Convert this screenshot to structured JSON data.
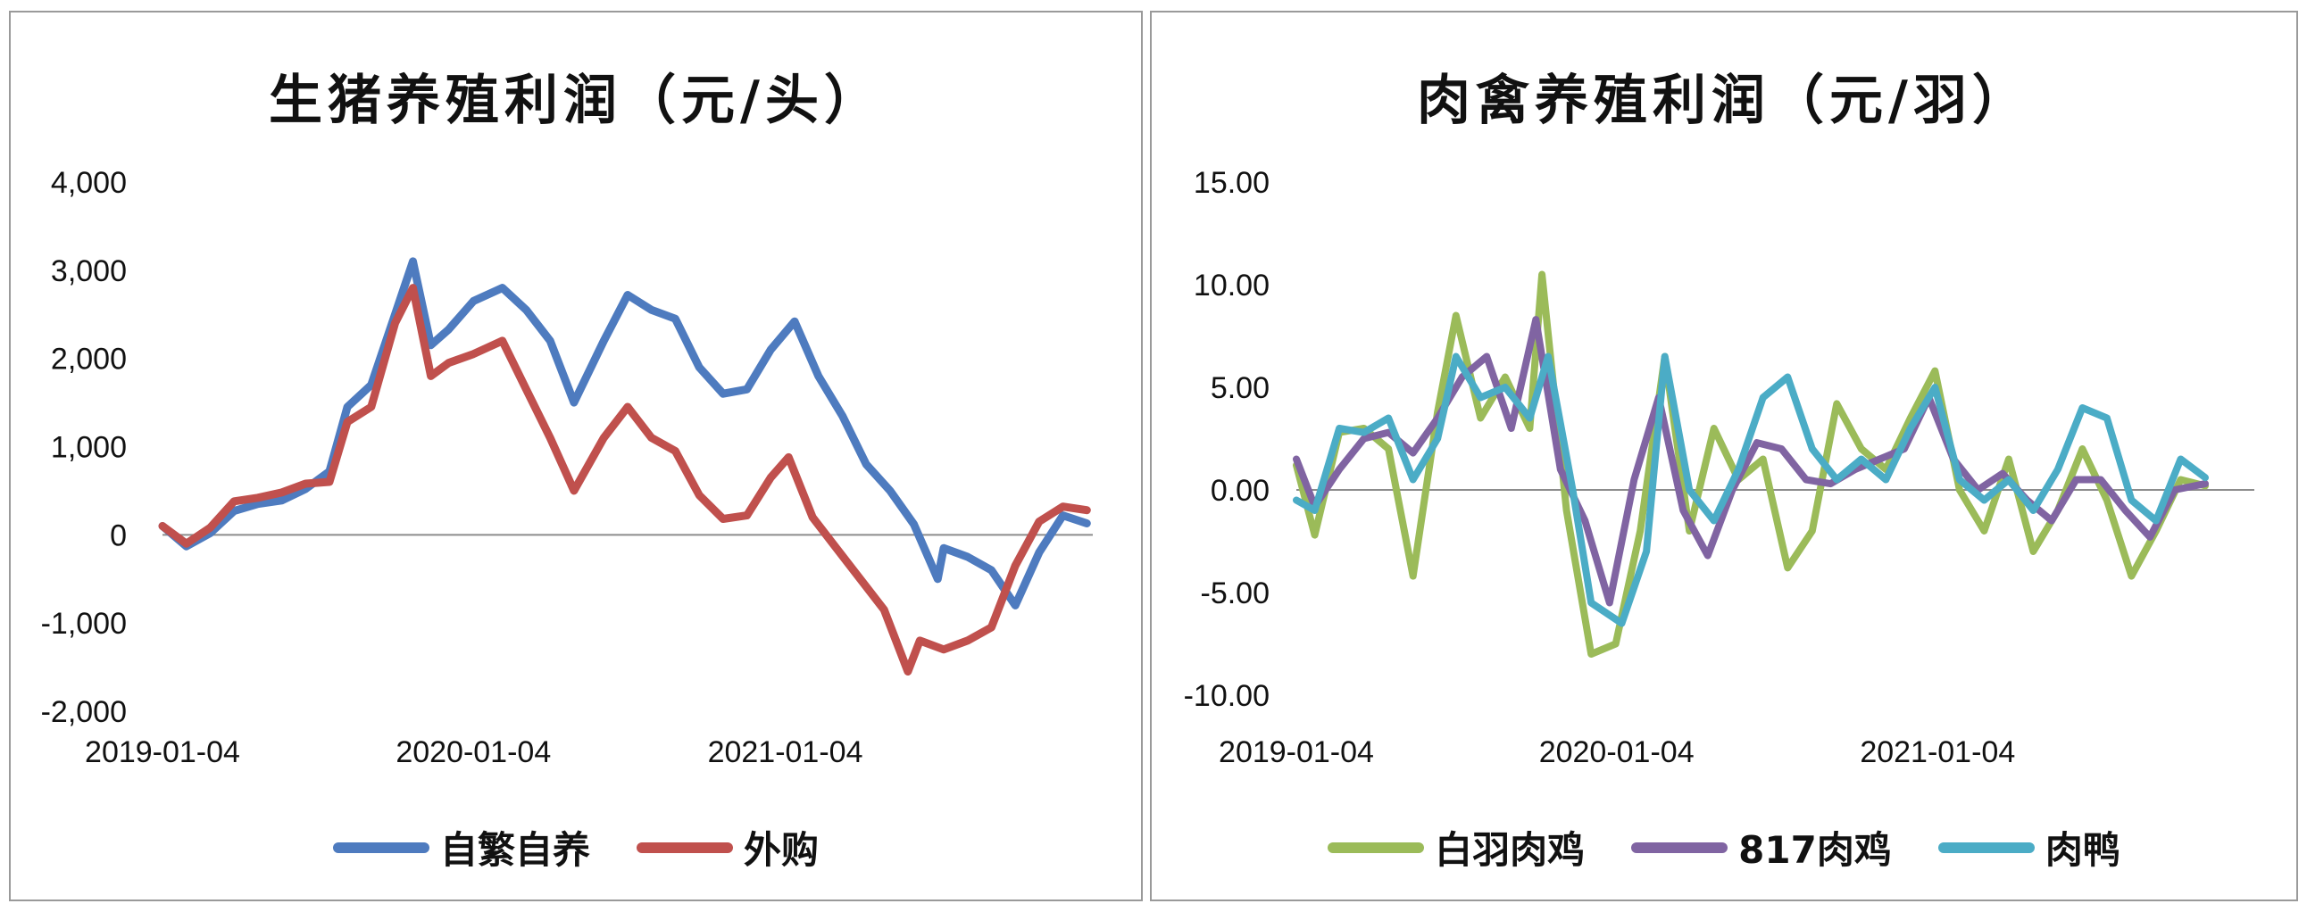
{
  "chart_data": [
    {
      "type": "line",
      "title": "生猪养殖利润（元/头）",
      "xlabel": "",
      "ylabel": "",
      "ylim": [
        -2000,
        4000
      ],
      "yticks": [
        4000,
        3000,
        2000,
        1000,
        0,
        -1000,
        -2000
      ],
      "ytick_labels": [
        "4,000",
        "3,000",
        "2,000",
        "1,000",
        "0",
        "-1,000",
        "-2,000"
      ],
      "x_tick_labels": [
        "2019-01-04",
        "2020-01-04",
        "2021-01-04"
      ],
      "x_range": [
        "2019-01-04",
        "2021-12-31"
      ],
      "grid": false,
      "legend_position": "bottom",
      "series": [
        {
          "name": "自繁自养",
          "color": "#4e7bbf",
          "points": [
            [
              "2019-01-04",
              100
            ],
            [
              "2019-02-01",
              -130
            ],
            [
              "2019-03-01",
              20
            ],
            [
              "2019-03-29",
              270
            ],
            [
              "2019-04-26",
              350
            ],
            [
              "2019-05-24",
              390
            ],
            [
              "2019-06-21",
              520
            ],
            [
              "2019-07-19",
              720
            ],
            [
              "2019-08-09",
              1450
            ],
            [
              "2019-09-06",
              1700
            ],
            [
              "2019-10-04",
              2500
            ],
            [
              "2019-10-25",
              3100
            ],
            [
              "2019-11-15",
              2150
            ],
            [
              "2019-12-06",
              2330
            ],
            [
              "2020-01-04",
              2650
            ],
            [
              "2020-02-07",
              2800
            ],
            [
              "2020-03-06",
              2550
            ],
            [
              "2020-04-03",
              2200
            ],
            [
              "2020-05-01",
              1500
            ],
            [
              "2020-06-05",
              2200
            ],
            [
              "2020-07-03",
              2720
            ],
            [
              "2020-07-31",
              2550
            ],
            [
              "2020-08-28",
              2450
            ],
            [
              "2020-09-25",
              1900
            ],
            [
              "2020-10-23",
              1600
            ],
            [
              "2020-11-20",
              1650
            ],
            [
              "2020-12-18",
              2100
            ],
            [
              "2021-01-15",
              2420
            ],
            [
              "2021-02-12",
              1800
            ],
            [
              "2021-03-12",
              1350
            ],
            [
              "2021-04-09",
              800
            ],
            [
              "2021-05-07",
              500
            ],
            [
              "2021-06-04",
              120
            ],
            [
              "2021-07-02",
              -500
            ],
            [
              "2021-07-09",
              -150
            ],
            [
              "2021-08-06",
              -250
            ],
            [
              "2021-09-03",
              -400
            ],
            [
              "2021-10-01",
              -800
            ],
            [
              "2021-10-29",
              -200
            ],
            [
              "2021-11-26",
              220
            ],
            [
              "2021-12-24",
              130
            ]
          ]
        },
        {
          "name": "外购",
          "color": "#c0504d",
          "points": [
            [
              "2019-01-04",
              100
            ],
            [
              "2019-02-01",
              -100
            ],
            [
              "2019-03-01",
              80
            ],
            [
              "2019-03-29",
              380
            ],
            [
              "2019-04-26",
              420
            ],
            [
              "2019-05-24",
              480
            ],
            [
              "2019-06-21",
              580
            ],
            [
              "2019-07-19",
              600
            ],
            [
              "2019-08-09",
              1280
            ],
            [
              "2019-09-06",
              1450
            ],
            [
              "2019-10-04",
              2400
            ],
            [
              "2019-10-25",
              2800
            ],
            [
              "2019-11-15",
              1800
            ],
            [
              "2019-12-06",
              1950
            ],
            [
              "2020-01-04",
              2050
            ],
            [
              "2020-02-07",
              2200
            ],
            [
              "2020-03-06",
              1650
            ],
            [
              "2020-04-03",
              1100
            ],
            [
              "2020-05-01",
              500
            ],
            [
              "2020-06-05",
              1100
            ],
            [
              "2020-07-03",
              1450
            ],
            [
              "2020-07-31",
              1100
            ],
            [
              "2020-08-28",
              950
            ],
            [
              "2020-09-25",
              450
            ],
            [
              "2020-10-23",
              180
            ],
            [
              "2020-11-20",
              220
            ],
            [
              "2020-12-18",
              650
            ],
            [
              "2021-01-08",
              880
            ],
            [
              "2021-02-05",
              200
            ],
            [
              "2021-03-05",
              -150
            ],
            [
              "2021-04-02",
              -500
            ],
            [
              "2021-04-30",
              -850
            ],
            [
              "2021-05-28",
              -1550
            ],
            [
              "2021-06-11",
              -1200
            ],
            [
              "2021-07-09",
              -1300
            ],
            [
              "2021-08-06",
              -1200
            ],
            [
              "2021-09-03",
              -1050
            ],
            [
              "2021-10-01",
              -350
            ],
            [
              "2021-10-29",
              150
            ],
            [
              "2021-11-26",
              320
            ],
            [
              "2021-12-24",
              280
            ]
          ]
        }
      ]
    },
    {
      "type": "line",
      "title": "肉禽养殖利润（元/羽）",
      "xlabel": "",
      "ylabel": "",
      "ylim": [
        -10,
        15
      ],
      "yticks": [
        15,
        10,
        5,
        0,
        -5,
        -10
      ],
      "ytick_labels": [
        "15.00",
        "10.00",
        "5.00",
        "0.00",
        "-5.00",
        "-10.00"
      ],
      "x_tick_labels": [
        "2019-01-04",
        "2020-01-04",
        "2021-01-04"
      ],
      "x_range": [
        "2019-01-04",
        "2021-12-31"
      ],
      "grid": false,
      "legend_position": "bottom",
      "series": [
        {
          "name": "白羽肉鸡",
          "color": "#9bbb59",
          "points": [
            [
              "2019-01-04",
              1.2
            ],
            [
              "2019-01-25",
              -2.2
            ],
            [
              "2019-02-22",
              2.8
            ],
            [
              "2019-03-22",
              3.0
            ],
            [
              "2019-04-19",
              2.0
            ],
            [
              "2019-05-17",
              -4.2
            ],
            [
              "2019-06-14",
              3.8
            ],
            [
              "2019-07-05",
              8.5
            ],
            [
              "2019-08-02",
              3.5
            ],
            [
              "2019-08-30",
              5.5
            ],
            [
              "2019-09-27",
              3.0
            ],
            [
              "2019-10-11",
              10.5
            ],
            [
              "2019-11-08",
              -1.0
            ],
            [
              "2019-12-06",
              -8.0
            ],
            [
              "2020-01-03",
              -7.5
            ],
            [
              "2020-01-31",
              -2.0
            ],
            [
              "2020-02-28",
              6.5
            ],
            [
              "2020-03-27",
              -2.0
            ],
            [
              "2020-04-24",
              3.0
            ],
            [
              "2020-05-22",
              0.5
            ],
            [
              "2020-06-19",
              1.5
            ],
            [
              "2020-07-17",
              -3.8
            ],
            [
              "2020-08-14",
              -2.0
            ],
            [
              "2020-09-11",
              4.2
            ],
            [
              "2020-10-09",
              2.0
            ],
            [
              "2020-11-06",
              1.0
            ],
            [
              "2020-12-04",
              3.5
            ],
            [
              "2021-01-01",
              5.8
            ],
            [
              "2021-01-29",
              0.0
            ],
            [
              "2021-02-26",
              -2.0
            ],
            [
              "2021-03-26",
              1.5
            ],
            [
              "2021-04-23",
              -3.0
            ],
            [
              "2021-05-21",
              -1.0
            ],
            [
              "2021-06-18",
              2.0
            ],
            [
              "2021-07-16",
              -0.5
            ],
            [
              "2021-08-13",
              -4.2
            ],
            [
              "2021-09-10",
              -2.0
            ],
            [
              "2021-10-08",
              0.5
            ],
            [
              "2021-11-05",
              0.2
            ]
          ]
        },
        {
          "name": "817肉鸡",
          "color": "#8064a2",
          "points": [
            [
              "2019-01-04",
              1.5
            ],
            [
              "2019-01-25",
              -0.8
            ],
            [
              "2019-02-22",
              1.0
            ],
            [
              "2019-03-22",
              2.5
            ],
            [
              "2019-04-19",
              2.8
            ],
            [
              "2019-05-17",
              1.8
            ],
            [
              "2019-06-14",
              3.5
            ],
            [
              "2019-07-12",
              5.5
            ],
            [
              "2019-08-09",
              6.5
            ],
            [
              "2019-09-06",
              3.0
            ],
            [
              "2019-10-04",
              8.3
            ],
            [
              "2019-11-01",
              1.0
            ],
            [
              "2019-11-29",
              -1.5
            ],
            [
              "2019-12-27",
              -5.5
            ],
            [
              "2020-01-24",
              0.5
            ],
            [
              "2020-02-21",
              4.5
            ],
            [
              "2020-03-20",
              -1.0
            ],
            [
              "2020-04-17",
              -3.2
            ],
            [
              "2020-05-15",
              0.0
            ],
            [
              "2020-06-12",
              2.3
            ],
            [
              "2020-07-10",
              2.0
            ],
            [
              "2020-08-07",
              0.5
            ],
            [
              "2020-09-04",
              0.3
            ],
            [
              "2020-10-02",
              1.0
            ],
            [
              "2020-10-30",
              1.5
            ],
            [
              "2020-11-27",
              2.0
            ],
            [
              "2020-12-25",
              4.5
            ],
            [
              "2021-01-22",
              1.5
            ],
            [
              "2021-02-19",
              0.0
            ],
            [
              "2021-03-19",
              0.8
            ],
            [
              "2021-04-16",
              -0.5
            ],
            [
              "2021-05-14",
              -1.5
            ],
            [
              "2021-06-11",
              0.5
            ],
            [
              "2021-07-09",
              0.5
            ],
            [
              "2021-08-06",
              -1.0
            ],
            [
              "2021-09-03",
              -2.3
            ],
            [
              "2021-10-01",
              0.0
            ],
            [
              "2021-11-05",
              0.3
            ]
          ]
        },
        {
          "name": "肉鸭",
          "color": "#4bacc6",
          "points": [
            [
              "2019-01-04",
              -0.5
            ],
            [
              "2019-01-25",
              -1.0
            ],
            [
              "2019-02-22",
              3.0
            ],
            [
              "2019-03-22",
              2.8
            ],
            [
              "2019-04-19",
              3.5
            ],
            [
              "2019-05-17",
              0.5
            ],
            [
              "2019-06-14",
              2.5
            ],
            [
              "2019-07-05",
              6.5
            ],
            [
              "2019-08-02",
              4.5
            ],
            [
              "2019-08-30",
              5.0
            ],
            [
              "2019-09-27",
              3.5
            ],
            [
              "2019-10-18",
              6.5
            ],
            [
              "2019-11-15",
              0.0
            ],
            [
              "2019-12-06",
              -5.5
            ],
            [
              "2020-01-10",
              -6.5
            ],
            [
              "2020-02-07",
              -3.0
            ],
            [
              "2020-02-28",
              6.5
            ],
            [
              "2020-03-27",
              0.0
            ],
            [
              "2020-04-24",
              -1.5
            ],
            [
              "2020-05-22",
              1.0
            ],
            [
              "2020-06-19",
              4.5
            ],
            [
              "2020-07-17",
              5.5
            ],
            [
              "2020-08-14",
              2.0
            ],
            [
              "2020-09-11",
              0.5
            ],
            [
              "2020-10-09",
              1.5
            ],
            [
              "2020-11-06",
              0.5
            ],
            [
              "2020-12-04",
              3.0
            ],
            [
              "2021-01-01",
              5.0
            ],
            [
              "2021-01-29",
              0.5
            ],
            [
              "2021-02-26",
              -0.5
            ],
            [
              "2021-03-26",
              0.5
            ],
            [
              "2021-04-23",
              -1.0
            ],
            [
              "2021-05-21",
              1.0
            ],
            [
              "2021-06-18",
              4.0
            ],
            [
              "2021-07-16",
              3.5
            ],
            [
              "2021-08-13",
              -0.5
            ],
            [
              "2021-09-10",
              -1.5
            ],
            [
              "2021-10-08",
              1.5
            ],
            [
              "2021-11-05",
              0.6
            ]
          ]
        }
      ]
    }
  ]
}
